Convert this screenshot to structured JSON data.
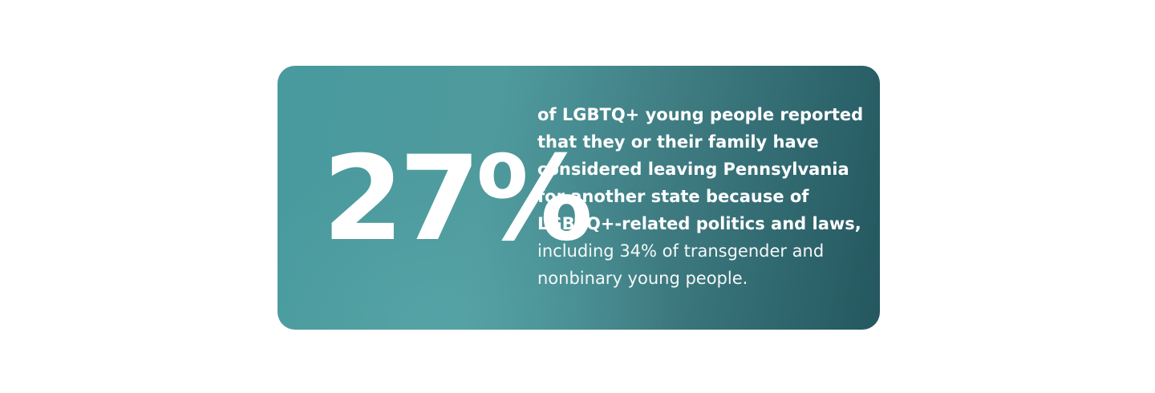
{
  "card": {
    "stat": "27%",
    "lead_lines": [
      "of LGBTQ+ young people reported",
      "that they or their family have",
      "considered leaving Pennsylvania",
      "for another state because of",
      "LGBTQ+-related politics and laws,"
    ],
    "detail_lines": [
      "including 34% of transgender and",
      "nonbinary young people."
    ]
  }
}
